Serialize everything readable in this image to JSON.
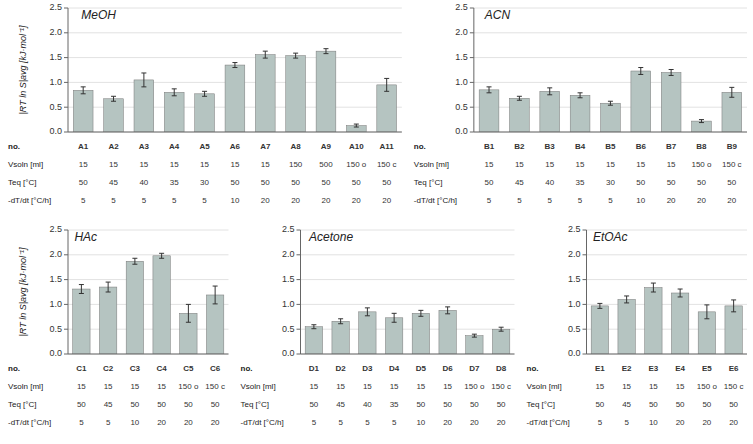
{
  "chart_data": [
    {
      "type": "bar",
      "title": "MeOH",
      "xlabel": "no.",
      "ylabel": "|RT ln S|avg  [kJ·mol⁻¹]",
      "categories": [
        "A1",
        "A2",
        "A3",
        "A4",
        "A5",
        "A6",
        "A7",
        "A8",
        "A9",
        "A10",
        "A11"
      ],
      "values": [
        0.84,
        0.67,
        1.05,
        0.8,
        0.77,
        1.35,
        1.56,
        1.54,
        1.63,
        0.13,
        0.95
      ],
      "errors": [
        0.07,
        0.05,
        0.14,
        0.07,
        0.05,
        0.05,
        0.07,
        0.05,
        0.05,
        0.03,
        0.13
      ],
      "color": "#b5c4c1",
      "ylim": [
        0.0,
        2.5
      ],
      "yticks": [
        {
          "value": 0.0,
          "label": "0.0"
        },
        0.5,
        {
          "value": 1.0,
          "label": "1.0"
        },
        1.5,
        {
          "value": 2.0,
          "label": "2.0"
        },
        2.5
      ],
      "grid": true,
      "table": [
        {
          "label": "Vsoln [ml]",
          "values": [
            "15",
            "15",
            "15",
            "15",
            "15",
            "15",
            "15",
            "150",
            "500",
            "150 o",
            "150 c"
          ]
        },
        {
          "label": "Teq [°C]",
          "values": [
            "50",
            "45",
            "40",
            "35",
            "30",
            "50",
            "50",
            "50",
            "50",
            "50",
            "50"
          ]
        },
        {
          "label": "-dT/dt [°C/h]",
          "values": [
            "5",
            "5",
            "5",
            "5",
            "5",
            "10",
            "20",
            "20",
            "20",
            "20",
            "20"
          ]
        }
      ]
    },
    {
      "type": "bar",
      "title": "ACN",
      "xlabel": "no.",
      "categories": [
        "B1",
        "B2",
        "B3",
        "B4",
        "B5",
        "B6",
        "B7",
        "B8",
        "B9"
      ],
      "values": [
        0.85,
        0.68,
        0.82,
        0.74,
        0.58,
        1.23,
        1.2,
        0.22,
        0.8
      ],
      "errors": [
        0.06,
        0.04,
        0.07,
        0.05,
        0.04,
        0.07,
        0.06,
        0.03,
        0.1
      ],
      "color": "#b5c4c1",
      "ylim": [
        0.0,
        2.5
      ],
      "yticks": [
        {
          "value": 0.0,
          "label": "0.0"
        },
        0.5,
        {
          "value": 1.0,
          "label": "1.0"
        },
        1.5,
        {
          "value": 2.0,
          "label": "2.0"
        },
        2.5
      ],
      "grid": true,
      "table": [
        {
          "label": "Vsoln [ml]",
          "values": [
            "15",
            "15",
            "15",
            "15",
            "15",
            "15",
            "15",
            "150 o",
            "150 c"
          ]
        },
        {
          "label": "Teq [°C]",
          "values": [
            "50",
            "45",
            "40",
            "35",
            "30",
            "50",
            "50",
            "50",
            "50"
          ]
        },
        {
          "label": "-dT/dt [°C/h]",
          "values": [
            "5",
            "5",
            "5",
            "5",
            "5",
            "10",
            "20",
            "20",
            "20"
          ]
        }
      ]
    },
    {
      "type": "bar",
      "title": "HAc",
      "xlabel": "no.",
      "ylabel": "|RT ln S|avg  [kJ·mol⁻¹]",
      "categories": [
        "C1",
        "C2",
        "C3",
        "C4",
        "C5",
        "C6"
      ],
      "values": [
        1.31,
        1.35,
        1.87,
        1.98,
        0.82,
        1.19
      ],
      "errors": [
        0.09,
        0.1,
        0.06,
        0.05,
        0.18,
        0.18
      ],
      "color": "#b5c4c1",
      "ylim": [
        0.0,
        2.5
      ],
      "yticks": [
        {
          "value": 0.0,
          "label": "0.0"
        },
        0.5,
        {
          "value": 1.0,
          "label": "1.0"
        },
        1.5,
        {
          "value": 2.0,
          "label": "2.0"
        },
        2.5
      ],
      "grid": true,
      "table": [
        {
          "label": "Vsoln [ml]",
          "values": [
            "15",
            "15",
            "15",
            "15",
            "150 o",
            "150 c"
          ]
        },
        {
          "label": "Teq [°C]",
          "values": [
            "50",
            "45",
            "50",
            "50",
            "50",
            "50"
          ]
        },
        {
          "label": "-dT/dt [°C/h]",
          "values": [
            "5",
            "5",
            "10",
            "20",
            "20",
            "20"
          ]
        }
      ]
    },
    {
      "type": "bar",
      "title": "Acetone",
      "xlabel": "no.",
      "categories": [
        "D1",
        "D2",
        "D3",
        "D4",
        "D5",
        "D6",
        "D7",
        "D8"
      ],
      "values": [
        0.55,
        0.66,
        0.85,
        0.73,
        0.82,
        0.88,
        0.37,
        0.5
      ],
      "errors": [
        0.04,
        0.05,
        0.08,
        0.09,
        0.06,
        0.07,
        0.03,
        0.04
      ],
      "color": "#b5c4c1",
      "ylim": [
        0.0,
        2.5
      ],
      "yticks": [
        {
          "value": 0.0,
          "label": "0.0"
        },
        0.5,
        {
          "value": 1.0,
          "label": "1.0"
        },
        1.5,
        {
          "value": 2.0,
          "label": "2.0"
        },
        2.5
      ],
      "grid": true,
      "table": [
        {
          "label": "Vsoln [ml]",
          "values": [
            "15",
            "15",
            "15",
            "15",
            "15",
            "15",
            "150 o",
            "150 c"
          ]
        },
        {
          "label": "Teq [°C]",
          "values": [
            "50",
            "45",
            "40",
            "35",
            "50",
            "50",
            "50",
            "50"
          ]
        },
        {
          "label": "-dT/dt [°C/h]",
          "values": [
            "5",
            "5",
            "5",
            "5",
            "10",
            "20",
            "20",
            "20"
          ]
        }
      ]
    },
    {
      "type": "bar",
      "title": "EtOAc",
      "xlabel": "no.",
      "categories": [
        "E1",
        "E2",
        "E3",
        "E4",
        "E5",
        "E6"
      ],
      "values": [
        0.97,
        1.1,
        1.34,
        1.23,
        0.85,
        0.97
      ],
      "errors": [
        0.05,
        0.07,
        0.09,
        0.08,
        0.14,
        0.12
      ],
      "color": "#b5c4c1",
      "ylim": [
        0.0,
        2.5
      ],
      "yticks": [
        {
          "value": 0.0,
          "label": "0.0"
        },
        0.5,
        {
          "value": 1.0,
          "label": "1.0"
        },
        1.5,
        {
          "value": 2.0,
          "label": "2.0"
        },
        2.5
      ],
      "grid": true,
      "table": [
        {
          "label": "Vsoln [ml]",
          "values": [
            "15",
            "15",
            "15",
            "15",
            "150 o",
            "150 c"
          ]
        },
        {
          "label": "Teq [°C]",
          "values": [
            "50",
            "45",
            "50",
            "50",
            "50",
            "50"
          ]
        },
        {
          "label": "-dT/dt [°C/h]",
          "values": [
            "5",
            "5",
            "10",
            "20",
            "20",
            "20"
          ]
        }
      ]
    }
  ]
}
